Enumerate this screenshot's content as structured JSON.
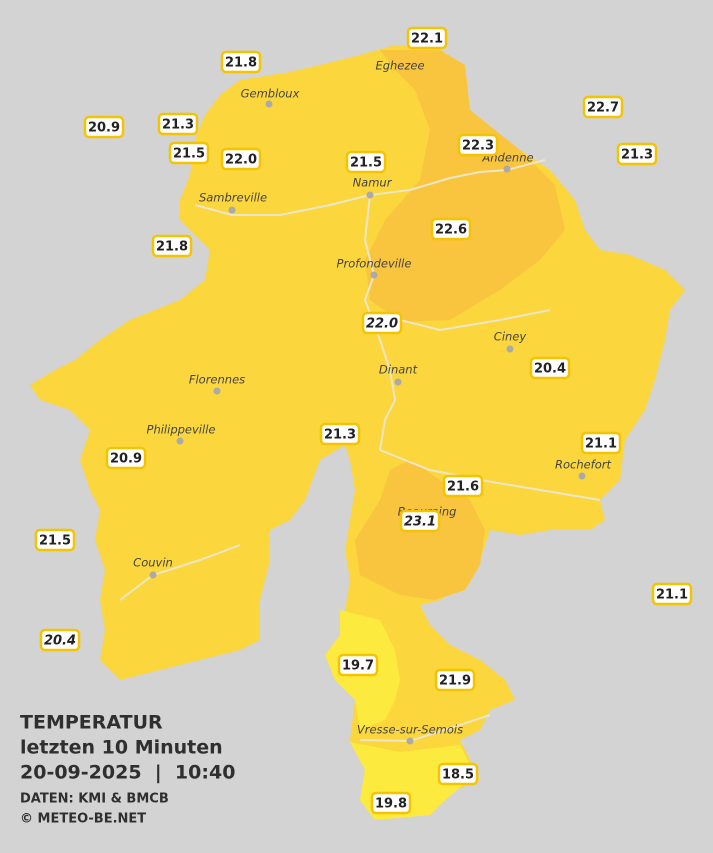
{
  "legend": {
    "title": "TEMPERATUR",
    "subtitle": "letzten 10 Minuten",
    "datetime": "20-09-2025  |  10:40",
    "source": "DATEN: KMI & BMCB",
    "copyright": "© METEO-BE.NET"
  },
  "places": [
    "Eghezee",
    "Gembloux",
    "Andenne",
    "Namur",
    "Sambreville",
    "Profondeville",
    "Ciney",
    "Dinant",
    "Florennes",
    "Philippeville",
    "Rochefort",
    "Beauraing",
    "Couvin",
    "Vresse-sur-Semois"
  ],
  "readings": [
    {
      "label": "22.1"
    },
    {
      "label": "21.8"
    },
    {
      "label": "20.9"
    },
    {
      "label": "21.3"
    },
    {
      "label": "21.5"
    },
    {
      "label": "22.0"
    },
    {
      "label": "21.5"
    },
    {
      "label": "22.3"
    },
    {
      "label": "22.7"
    },
    {
      "label": "21.3"
    },
    {
      "label": "21.8"
    },
    {
      "label": "22.6"
    },
    {
      "label": "22.0",
      "italic": true
    },
    {
      "label": "20.4"
    },
    {
      "label": "21.3"
    },
    {
      "label": "21.1"
    },
    {
      "label": "20.9"
    },
    {
      "label": "21.6"
    },
    {
      "label": "23.1",
      "italic": true
    },
    {
      "label": "21.5"
    },
    {
      "label": "21.1"
    },
    {
      "label": "20.4",
      "italic": true
    },
    {
      "label": "19.7"
    },
    {
      "label": "21.9"
    },
    {
      "label": "18.5"
    },
    {
      "label": "19.8"
    }
  ]
}
